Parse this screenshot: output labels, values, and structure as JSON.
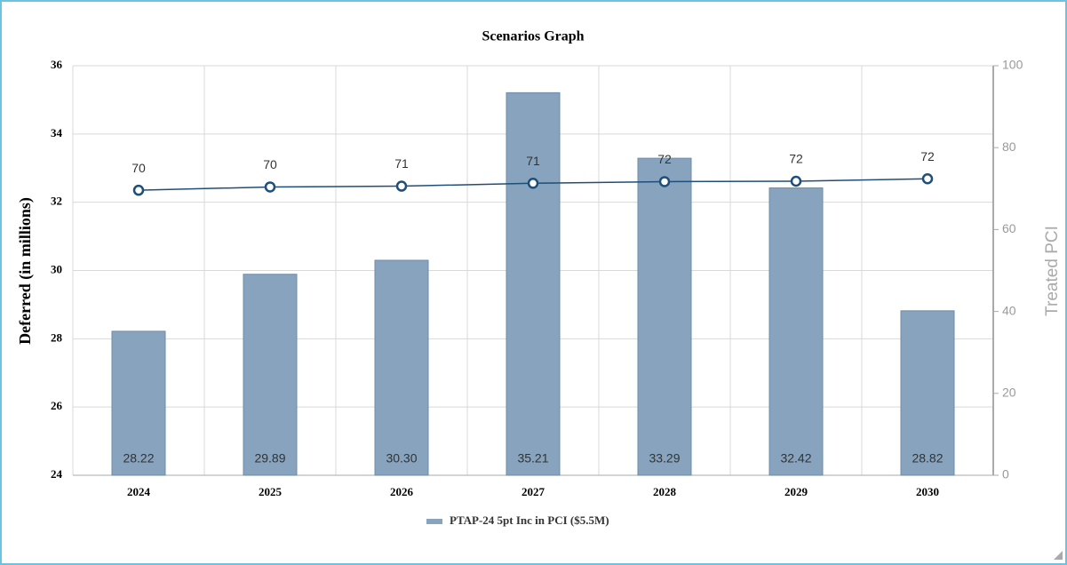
{
  "chart_data": {
    "type": "bar",
    "title": "Scenarios Graph",
    "y_label": "Deferred (in millions)",
    "y2_label": "Treated PCI",
    "categories": [
      "2024",
      "2025",
      "2026",
      "2027",
      "2028",
      "2029",
      "2030"
    ],
    "series": [
      {
        "name": "PTAP-24 5pt Inc in PCI ($5.5M)",
        "color": "#87a3bd",
        "type": "bar",
        "values": [
          28.22,
          29.89,
          30.3,
          35.21,
          33.29,
          32.42,
          28.82
        ],
        "value_labels": [
          "28.22",
          "29.89",
          "30.30",
          "35.21",
          "33.29",
          "32.42",
          "28.82"
        ]
      },
      {
        "color": "#1f4e79",
        "type": "line",
        "axis": "y2",
        "values": [
          69.6,
          70.4,
          70.6,
          71.3,
          71.7,
          71.8,
          72.4
        ],
        "value_labels": [
          "70",
          "70",
          "71",
          "71",
          "72",
          "72",
          "72"
        ]
      }
    ],
    "ylim": [
      24,
      36
    ],
    "yticks": [
      24,
      26,
      28,
      30,
      32,
      34,
      36
    ],
    "y2lim": [
      0,
      100
    ],
    "y2ticks": [
      0,
      20,
      40,
      60,
      80,
      100
    ],
    "grid": true,
    "legend": "bottom"
  }
}
